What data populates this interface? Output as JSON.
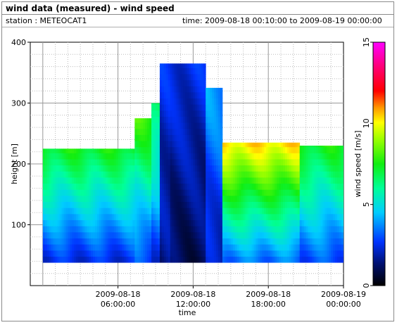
{
  "header": {
    "title": "wind data (measured) - wind speed",
    "station_label": "station : METEOCAT1",
    "time_range_label": "time: 2009-08-18 00:10:00 to 2009-08-19 00:00:00"
  },
  "chart_data": {
    "type": "heatmap",
    "title": "wind data (measured) - wind speed",
    "xlabel": "time",
    "ylabel": "height [m]",
    "colorbar_label": "wind speed [m/s]",
    "xlim": [
      "2009-08-17 23:00",
      "2009-08-19 00:00"
    ],
    "ylim": [
      0,
      400
    ],
    "zlim": [
      0,
      15
    ],
    "x_ticks": [
      {
        "value": "2009-08-18 06:00",
        "date": "2009-08-18",
        "time": "06:00:00"
      },
      {
        "value": "2009-08-18 12:00",
        "date": "2009-08-18",
        "time": "12:00:00"
      },
      {
        "value": "2009-08-18 18:00",
        "date": "2009-08-18",
        "time": "18:00:00"
      },
      {
        "value": "2009-08-19 00:00",
        "date": "2009-08-19",
        "time": "00:00:00"
      }
    ],
    "y_ticks": [
      100,
      200,
      300,
      400
    ],
    "colorbar_ticks": [
      0,
      5,
      10,
      15
    ],
    "grid": true,
    "time_step_minutes": 10,
    "profile_height_range_m": [
      38,
      365
    ],
    "columns": [
      {
        "from": "2009-08-18 00:10",
        "to": "2009-08-18 07:20",
        "top_m": 225,
        "lower_ms": 2.5,
        "upper_ms": 7.5
      },
      {
        "from": "2009-08-18 07:30",
        "to": "2009-08-18 08:40",
        "top_m": 275,
        "lower_ms": 3,
        "upper_ms": 8
      },
      {
        "from": "2009-08-18 08:50",
        "to": "2009-08-18 09:20",
        "top_m": 300,
        "lower_ms": 2.5,
        "upper_ms": 7
      },
      {
        "from": "2009-08-18 09:30",
        "to": "2009-08-18 10:10",
        "top_m": 365,
        "lower_ms": 1.5,
        "upper_ms": 2.5
      },
      {
        "from": "2009-08-18 10:20",
        "to": "2009-08-18 13:00",
        "top_m": 365,
        "lower_ms": 1,
        "upper_ms": 2.5
      },
      {
        "from": "2009-08-18 13:10",
        "to": "2009-08-18 14:20",
        "top_m": 325,
        "lower_ms": 2,
        "upper_ms": 4
      },
      {
        "from": "2009-08-18 14:30",
        "to": "2009-08-18 20:30",
        "top_m": 235,
        "lower_ms": 3.5,
        "upper_ms": 10.5
      },
      {
        "from": "2009-08-18 20:40",
        "to": "2009-08-19 00:00",
        "top_m": 230,
        "lower_ms": 3,
        "upper_ms": 7.5
      }
    ]
  }
}
